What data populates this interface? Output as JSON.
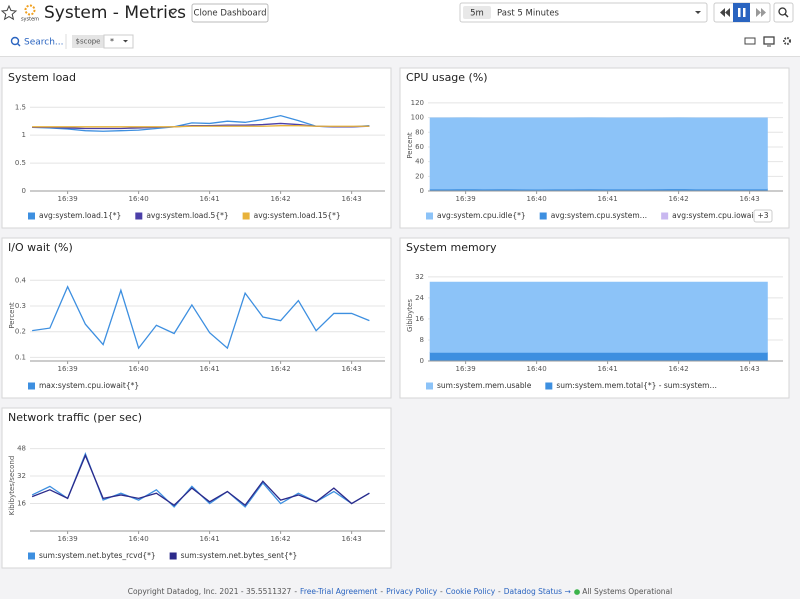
{
  "header": {
    "title": "System - Metrics",
    "logo_label": "system",
    "clone_button": "Clone Dashboard",
    "time_short": "5m",
    "time_range": "Past 5 Minutes"
  },
  "toolbar": {
    "search": "Search...",
    "variable_name": "$scope",
    "variable_value": "*"
  },
  "chart_data": [
    {
      "type": "line",
      "title": "System load",
      "x": [
        998.5,
        998.75,
        999,
        999.25,
        999.5,
        999.75,
        1000,
        1000.25,
        1000.5,
        1000.75,
        1001,
        1001.25,
        1001.5,
        1001.75,
        1002,
        1002.25,
        1002.5,
        1002.75,
        1003,
        1003.25
      ],
      "series": [
        {
          "name": "avg:system.load.1{*}",
          "color": "#3d8fe0",
          "values": [
            1.14,
            1.13,
            1.11,
            1.08,
            1.07,
            1.08,
            1.09,
            1.12,
            1.15,
            1.22,
            1.21,
            1.25,
            1.23,
            1.28,
            1.35,
            1.26,
            1.16,
            1.15,
            1.15,
            1.17
          ]
        },
        {
          "name": "avg:system.load.5{*}",
          "color": "#4b3fa8",
          "values": [
            1.14,
            1.14,
            1.13,
            1.12,
            1.12,
            1.12,
            1.13,
            1.14,
            1.15,
            1.17,
            1.17,
            1.18,
            1.18,
            1.19,
            1.21,
            1.19,
            1.16,
            1.15,
            1.15,
            1.16
          ]
        },
        {
          "name": "avg:system.load.15{*}",
          "color": "#e8b23a",
          "values": [
            1.15,
            1.15,
            1.15,
            1.15,
            1.15,
            1.15,
            1.15,
            1.15,
            1.15,
            1.16,
            1.16,
            1.16,
            1.16,
            1.16,
            1.17,
            1.17,
            1.16,
            1.16,
            1.16,
            1.16
          ]
        }
      ],
      "xlim": [
        998.47,
        1003.47
      ],
      "ylim": [
        0,
        1.63
      ],
      "xticks": [
        {
          "value": 999,
          "label": "16:39"
        },
        {
          "value": 1000,
          "label": "16:40"
        },
        {
          "value": 1001,
          "label": "16:41"
        },
        {
          "value": 1002,
          "label": "16:42"
        },
        {
          "value": 1003,
          "label": "16:43"
        }
      ],
      "yticks": [
        0,
        0.5,
        1,
        1.5
      ],
      "grid": true
    },
    {
      "type": "area",
      "stacked": true,
      "title": "CPU usage (%)",
      "y_label": "Percent",
      "x": [
        998.5,
        998.75,
        999,
        999.25,
        999.5,
        999.75,
        1000,
        1000.25,
        1000.5,
        1000.75,
        1001,
        1001.25,
        1001.5,
        1001.75,
        1002,
        1002.25,
        1002.5,
        1002.75,
        1003,
        1003.25
      ],
      "series": [
        {
          "name": "avg:system.cpu.idle{*}",
          "color": "#8cc3f8",
          "values": [
            96.9,
            96.8,
            96.6,
            96.9,
            96.7,
            96.8,
            97,
            96.8,
            96.9,
            96.7,
            96.8,
            96.9,
            96.8,
            96.7,
            96.4,
            96.8,
            96.9,
            96.8,
            96.9,
            96.8
          ]
        },
        {
          "name": "avg:system.cpu.system…",
          "color": "#3d8fe0",
          "values": [
            2.5,
            2.6,
            2.8,
            2.5,
            2.7,
            2.6,
            2.4,
            2.6,
            2.5,
            2.7,
            2.6,
            2.5,
            2.6,
            2.7,
            3,
            2.6,
            2.5,
            2.6,
            2.5,
            2.6
          ]
        },
        {
          "name": "avg:system.cpu.iowait{*}",
          "color": "#c9b8f0",
          "values": [
            0.2,
            0.2,
            0.3,
            0.2,
            0.2,
            0.2,
            0.2,
            0.2,
            0.2,
            0.3,
            0.2,
            0.2,
            0.2,
            0.2,
            0.3,
            0.2,
            0.2,
            0.2,
            0.2,
            0.2
          ]
        }
      ],
      "legend_more": "+3",
      "xlim": [
        998.47,
        1003.47
      ],
      "ylim": [
        0,
        124
      ],
      "xticks": [
        {
          "value": 999,
          "label": "16:39"
        },
        {
          "value": 1000,
          "label": "16:40"
        },
        {
          "value": 1001,
          "label": "16:41"
        },
        {
          "value": 1002,
          "label": "16:42"
        },
        {
          "value": 1003,
          "label": "16:43"
        }
      ],
      "yticks": [
        0,
        20,
        40,
        60,
        80,
        100,
        120
      ],
      "grid": true
    },
    {
      "type": "line",
      "title": "I/O wait (%)",
      "y_label": "Percent",
      "x": [
        998.5,
        998.75,
        999,
        999.25,
        999.5,
        999.75,
        1000,
        1000.25,
        1000.5,
        1000.75,
        1001,
        1001.25,
        1001.5,
        1001.75,
        1002,
        1002.25,
        1002.5,
        1002.75,
        1003,
        1003.25
      ],
      "series": [
        {
          "name": "max:system.cpu.iowait{*}",
          "color": "#3d8fe0",
          "values": [
            0.204,
            0.214,
            0.375,
            0.229,
            0.15,
            0.361,
            0.136,
            0.225,
            0.193,
            0.304,
            0.196,
            0.136,
            0.35,
            0.257,
            0.243,
            0.321,
            0.204,
            0.271,
            0.271,
            0.243
          ]
        }
      ],
      "xlim": [
        998.47,
        1003.47
      ],
      "ylim": [
        0.086,
        0.44
      ],
      "xticks": [
        {
          "value": 999,
          "label": "16:39"
        },
        {
          "value": 1000,
          "label": "16:40"
        },
        {
          "value": 1001,
          "label": "16:41"
        },
        {
          "value": 1002,
          "label": "16:42"
        },
        {
          "value": 1003,
          "label": "16:43"
        }
      ],
      "yticks": [
        0.1,
        0.2,
        0.3,
        0.4
      ],
      "grid": true
    },
    {
      "type": "area",
      "stacked": true,
      "title": "System memory",
      "y_label": "Gibibytes",
      "x": [
        998.5,
        998.75,
        999,
        999.25,
        999.5,
        999.75,
        1000,
        1000.25,
        1000.5,
        1000.75,
        1001,
        1001.25,
        1001.5,
        1001.75,
        1002,
        1002.25,
        1002.5,
        1002.75,
        1003,
        1003.25
      ],
      "series": [
        {
          "name": "sum:system.mem.usable",
          "color": "#8cc3f8",
          "values": [
            26.7,
            26.7,
            26.7,
            26.7,
            26.7,
            26.7,
            26.7,
            26.7,
            26.7,
            26.7,
            26.7,
            26.7,
            26.7,
            26.7,
            26.7,
            26.7,
            26.7,
            26.7,
            26.7,
            26.7
          ]
        },
        {
          "name": "sum:system.mem.total{*} - sum:system…",
          "color": "#3d8fe0",
          "values": [
            3.3,
            3.3,
            3.3,
            3.3,
            3.3,
            3.3,
            3.3,
            3.3,
            3.3,
            3.3,
            3.3,
            3.3,
            3.3,
            3.3,
            3.3,
            3.3,
            3.3,
            3.3,
            3.3,
            3.3
          ]
        }
      ],
      "xlim": [
        998.47,
        1003.47
      ],
      "ylim": [
        0,
        34.6
      ],
      "xticks": [
        {
          "value": 999,
          "label": "16:39"
        },
        {
          "value": 1000,
          "label": "16:40"
        },
        {
          "value": 1001,
          "label": "16:41"
        },
        {
          "value": 1002,
          "label": "16:42"
        },
        {
          "value": 1003,
          "label": "16:43"
        }
      ],
      "yticks": [
        0,
        8,
        16,
        24,
        32
      ],
      "grid": true
    },
    {
      "type": "line",
      "title": "Network traffic (per sec)",
      "y_label": "Kibibytes/second",
      "x": [
        998.5,
        998.75,
        999,
        999.25,
        999.5,
        999.75,
        1000,
        1000.25,
        1000.5,
        1000.75,
        1001,
        1001.25,
        1001.5,
        1001.75,
        1002,
        1002.25,
        1002.5,
        1002.75,
        1003,
        1003.25
      ],
      "series": [
        {
          "name": "sum:system.net.bytes_rcvd{*}",
          "color": "#3d8fe0",
          "values": [
            21,
            26,
            19,
            45,
            18,
            22,
            18,
            24,
            14,
            26,
            16,
            23,
            14,
            28,
            16,
            22,
            17,
            23,
            16,
            22
          ]
        },
        {
          "name": "sum:system.net.bytes_sent{*}",
          "color": "#2c2a8a",
          "values": [
            20,
            24,
            19,
            44,
            19,
            21,
            19,
            22,
            15,
            25,
            17,
            23,
            15,
            29,
            18,
            21,
            17,
            25,
            16,
            22
          ]
        }
      ],
      "xlim": [
        998.47,
        1003.47
      ],
      "ylim": [
        0,
        53
      ],
      "xticks": [
        {
          "value": 999,
          "label": "16:39"
        },
        {
          "value": 1000,
          "label": "16:40"
        },
        {
          "value": 1001,
          "label": "16:41"
        },
        {
          "value": 1002,
          "label": "16:42"
        },
        {
          "value": 1003,
          "label": "16:43"
        }
      ],
      "yticks": [
        16,
        32,
        48
      ],
      "grid": true
    }
  ],
  "footer": {
    "copyright": "Copyright Datadog, Inc. 2021 - 35.5511327",
    "separator": "-",
    "links": [
      "Free-Trial Agreement",
      "Privacy Policy",
      "Cookie Policy",
      "Datadog Status →"
    ],
    "status": "All Systems Operational"
  }
}
